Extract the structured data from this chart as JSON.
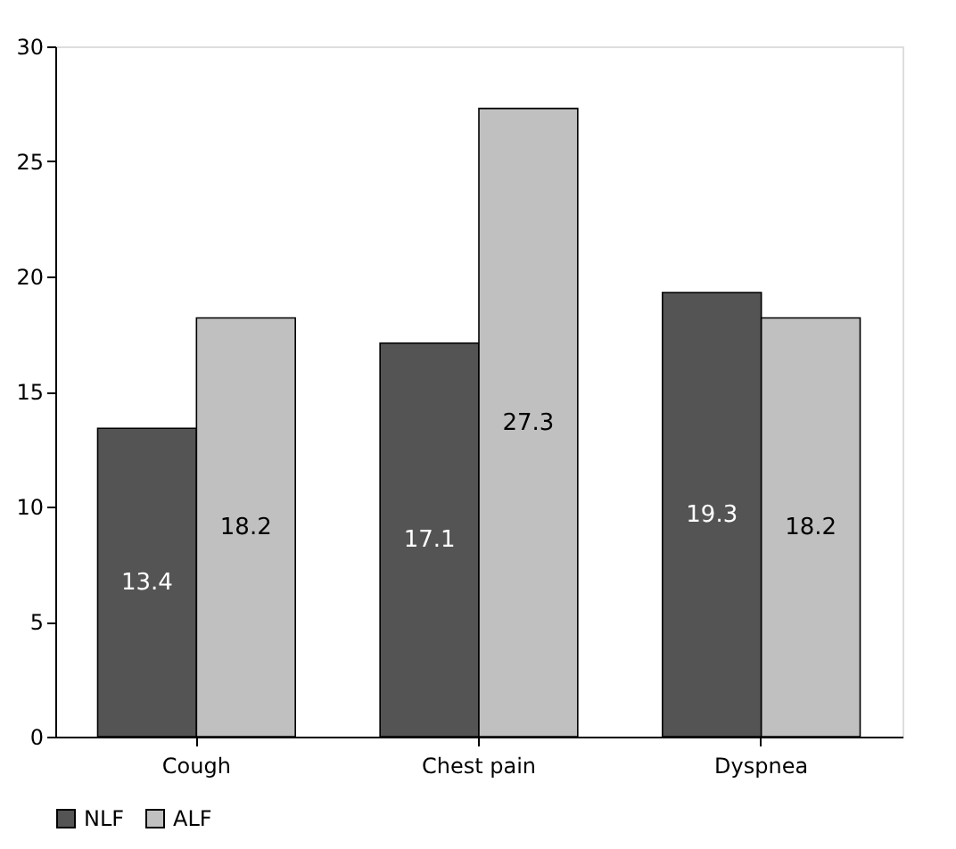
{
  "chart_data": {
    "type": "bar",
    "categories": [
      "Cough",
      "Chest pain",
      "Dyspnea"
    ],
    "series": [
      {
        "name": "NLF",
        "color": "#545454",
        "values": [
          13.4,
          17.1,
          19.3
        ]
      },
      {
        "name": "ALF",
        "color": "#c0c0c0",
        "values": [
          18.2,
          27.3,
          18.2
        ]
      }
    ],
    "ylim": [
      0,
      30
    ],
    "yticks": [
      0,
      5,
      10,
      15,
      20,
      25,
      30
    ],
    "grid": false,
    "legend": "bottom",
    "data_labels": true
  }
}
